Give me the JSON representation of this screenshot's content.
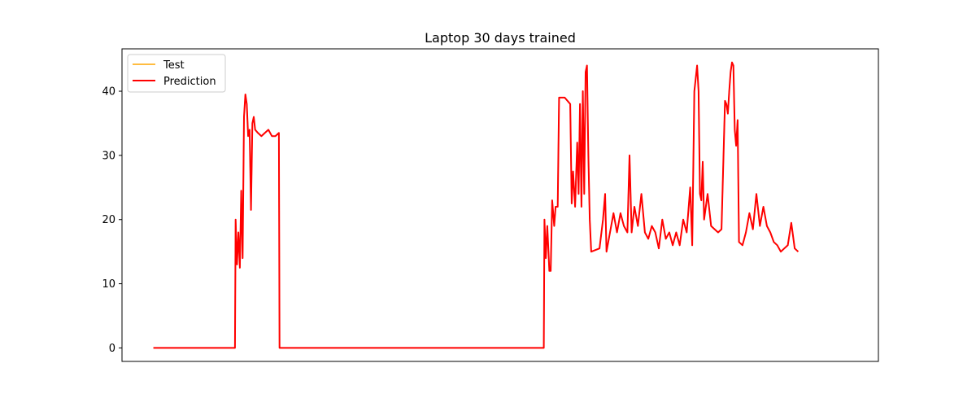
{
  "chart_data": {
    "type": "line",
    "title": "Laptop 30 days trained",
    "xlabel": "",
    "ylabel": "",
    "x_ticks_shown": false,
    "xlim": [
      -45,
      1040
    ],
    "ylim": [
      -2.1,
      46.6
    ],
    "y_ticks": [
      0,
      10,
      20,
      30,
      40
    ],
    "y_tick_labels": [
      "0",
      "10",
      "20",
      "30",
      "40"
    ],
    "grid": false,
    "legend": {
      "position": "upper-left",
      "entries": [
        "Test",
        "Prediction"
      ]
    },
    "series": [
      {
        "name": "Test",
        "color": "#ffa500",
        "points": [
          [
            0,
            0
          ],
          [
            117,
            0
          ],
          [
            118,
            20
          ],
          [
            120,
            13
          ],
          [
            122,
            18
          ],
          [
            124,
            12.5
          ],
          [
            126,
            24.5
          ],
          [
            128,
            14
          ],
          [
            130,
            36
          ],
          [
            132,
            39.5
          ],
          [
            134,
            38
          ],
          [
            136,
            33
          ],
          [
            138,
            34
          ],
          [
            140,
            21.5
          ],
          [
            142,
            35
          ],
          [
            144,
            36
          ],
          [
            146,
            34
          ],
          [
            150,
            33.5
          ],
          [
            155,
            33
          ],
          [
            160,
            33.5
          ],
          [
            165,
            34
          ],
          [
            170,
            33
          ],
          [
            175,
            33
          ],
          [
            180,
            33.5
          ],
          [
            181,
            0
          ],
          [
            560,
            0
          ],
          [
            561,
            20
          ],
          [
            563,
            14
          ],
          [
            565,
            19
          ],
          [
            568,
            12
          ],
          [
            570,
            12
          ],
          [
            572,
            23
          ],
          [
            575,
            19
          ],
          [
            577,
            22
          ],
          [
            580,
            22
          ],
          [
            582,
            39
          ],
          [
            590,
            39
          ],
          [
            598,
            38
          ],
          [
            600,
            22.5
          ],
          [
            602,
            27.5
          ],
          [
            605,
            22
          ],
          [
            608,
            32
          ],
          [
            610,
            24
          ],
          [
            612,
            38
          ],
          [
            614,
            22
          ],
          [
            616,
            40
          ],
          [
            618,
            24
          ],
          [
            620,
            43
          ],
          [
            622,
            44
          ],
          [
            624,
            30
          ],
          [
            626,
            20
          ],
          [
            628,
            15
          ],
          [
            640,
            15.5
          ],
          [
            645,
            20
          ],
          [
            648,
            24
          ],
          [
            650,
            15
          ],
          [
            660,
            21
          ],
          [
            665,
            18
          ],
          [
            670,
            21
          ],
          [
            675,
            19
          ],
          [
            680,
            18
          ],
          [
            683,
            30
          ],
          [
            686,
            18
          ],
          [
            690,
            22
          ],
          [
            695,
            19
          ],
          [
            700,
            24
          ],
          [
            705,
            18
          ],
          [
            710,
            17
          ],
          [
            715,
            19
          ],
          [
            720,
            18
          ],
          [
            725,
            15.5
          ],
          [
            730,
            20
          ],
          [
            735,
            17
          ],
          [
            740,
            18
          ],
          [
            745,
            16
          ],
          [
            750,
            18
          ],
          [
            755,
            16
          ],
          [
            760,
            20
          ],
          [
            765,
            18
          ],
          [
            770,
            25
          ],
          [
            773,
            16
          ],
          [
            776,
            40
          ],
          [
            778,
            42
          ],
          [
            780,
            44
          ],
          [
            782,
            40
          ],
          [
            784,
            24
          ],
          [
            786,
            23
          ],
          [
            788,
            29
          ],
          [
            790,
            20
          ],
          [
            795,
            24
          ],
          [
            800,
            19
          ],
          [
            805,
            18.5
          ],
          [
            810,
            18
          ],
          [
            815,
            18.5
          ],
          [
            820,
            38.5
          ],
          [
            822,
            38
          ],
          [
            824,
            36.5
          ],
          [
            826,
            40
          ],
          [
            828,
            43
          ],
          [
            830,
            44.5
          ],
          [
            832,
            44
          ],
          [
            834,
            34
          ],
          [
            836,
            31.5
          ],
          [
            838,
            35.5
          ],
          [
            840,
            16.5
          ],
          [
            845,
            16
          ],
          [
            850,
            18
          ],
          [
            855,
            21
          ],
          [
            860,
            18.5
          ],
          [
            865,
            24
          ],
          [
            870,
            19
          ],
          [
            875,
            22
          ],
          [
            880,
            19
          ],
          [
            885,
            18
          ],
          [
            890,
            16.5
          ],
          [
            895,
            16
          ],
          [
            900,
            15
          ],
          [
            905,
            15.5
          ],
          [
            910,
            16
          ],
          [
            915,
            19.5
          ],
          [
            920,
            15.5
          ],
          [
            925,
            15
          ]
        ]
      },
      {
        "name": "Prediction",
        "color": "#ff0000",
        "points": [
          [
            0,
            0
          ],
          [
            117,
            0
          ],
          [
            118,
            20
          ],
          [
            120,
            13
          ],
          [
            122,
            18
          ],
          [
            124,
            12.5
          ],
          [
            126,
            24.5
          ],
          [
            128,
            14
          ],
          [
            130,
            36
          ],
          [
            132,
            39.5
          ],
          [
            134,
            38
          ],
          [
            136,
            33
          ],
          [
            138,
            34
          ],
          [
            140,
            21.5
          ],
          [
            142,
            35
          ],
          [
            144,
            36
          ],
          [
            146,
            34
          ],
          [
            150,
            33.5
          ],
          [
            155,
            33
          ],
          [
            160,
            33.5
          ],
          [
            165,
            34
          ],
          [
            170,
            33
          ],
          [
            175,
            33
          ],
          [
            180,
            33.5
          ],
          [
            181,
            0
          ],
          [
            560,
            0
          ],
          [
            561,
            20
          ],
          [
            563,
            14
          ],
          [
            565,
            19
          ],
          [
            568,
            12
          ],
          [
            570,
            12
          ],
          [
            572,
            23
          ],
          [
            575,
            19
          ],
          [
            577,
            22
          ],
          [
            580,
            22
          ],
          [
            582,
            39
          ],
          [
            590,
            39
          ],
          [
            598,
            38
          ],
          [
            600,
            22.5
          ],
          [
            602,
            27.5
          ],
          [
            605,
            22
          ],
          [
            608,
            32
          ],
          [
            610,
            24
          ],
          [
            612,
            38
          ],
          [
            614,
            22
          ],
          [
            616,
            40
          ],
          [
            618,
            24
          ],
          [
            620,
            43
          ],
          [
            622,
            44
          ],
          [
            624,
            30
          ],
          [
            626,
            20
          ],
          [
            628,
            15
          ],
          [
            640,
            15.5
          ],
          [
            645,
            20
          ],
          [
            648,
            24
          ],
          [
            650,
            15
          ],
          [
            660,
            21
          ],
          [
            665,
            18
          ],
          [
            670,
            21
          ],
          [
            675,
            19
          ],
          [
            680,
            18
          ],
          [
            683,
            30
          ],
          [
            686,
            18
          ],
          [
            690,
            22
          ],
          [
            695,
            19
          ],
          [
            700,
            24
          ],
          [
            705,
            18
          ],
          [
            710,
            17
          ],
          [
            715,
            19
          ],
          [
            720,
            18
          ],
          [
            725,
            15.5
          ],
          [
            730,
            20
          ],
          [
            735,
            17
          ],
          [
            740,
            18
          ],
          [
            745,
            16
          ],
          [
            750,
            18
          ],
          [
            755,
            16
          ],
          [
            760,
            20
          ],
          [
            765,
            18
          ],
          [
            770,
            25
          ],
          [
            773,
            16
          ],
          [
            776,
            40
          ],
          [
            778,
            42
          ],
          [
            780,
            44
          ],
          [
            782,
            40
          ],
          [
            784,
            24
          ],
          [
            786,
            23
          ],
          [
            788,
            29
          ],
          [
            790,
            20
          ],
          [
            795,
            24
          ],
          [
            800,
            19
          ],
          [
            805,
            18.5
          ],
          [
            810,
            18
          ],
          [
            815,
            18.5
          ],
          [
            820,
            38.5
          ],
          [
            822,
            38
          ],
          [
            824,
            36.5
          ],
          [
            826,
            40
          ],
          [
            828,
            43
          ],
          [
            830,
            44.5
          ],
          [
            832,
            44
          ],
          [
            834,
            34
          ],
          [
            836,
            31.5
          ],
          [
            838,
            35.5
          ],
          [
            840,
            16.5
          ],
          [
            845,
            16
          ],
          [
            850,
            18
          ],
          [
            855,
            21
          ],
          [
            860,
            18.5
          ],
          [
            865,
            24
          ],
          [
            870,
            19
          ],
          [
            875,
            22
          ],
          [
            880,
            19
          ],
          [
            885,
            18
          ],
          [
            890,
            16.5
          ],
          [
            895,
            16
          ],
          [
            900,
            15
          ],
          [
            905,
            15.5
          ],
          [
            910,
            16
          ],
          [
            915,
            19.5
          ],
          [
            920,
            15.5
          ],
          [
            925,
            15
          ]
        ]
      }
    ]
  }
}
